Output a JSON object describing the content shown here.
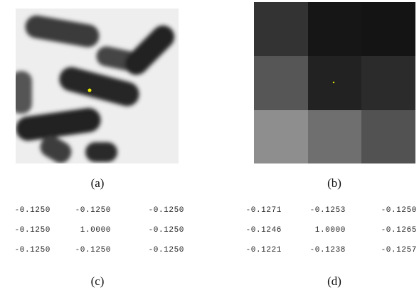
{
  "figure": {
    "panels": [
      {
        "caption": "(a)"
      },
      {
        "caption": "(b)"
      },
      {
        "caption": "(c)",
        "matrix": [
          [
            "-0.1250",
            "-0.1250",
            "-0.1250"
          ],
          [
            "-0.1250",
            "1.0000",
            "-0.1250"
          ],
          [
            "-0.1250",
            "-0.1250",
            "-0.1250"
          ]
        ]
      },
      {
        "caption": "(d)",
        "matrix": [
          [
            "-0.1271",
            "-0.1253",
            "-0.1250"
          ],
          [
            "-0.1246",
            "1.0000",
            "-0.1265"
          ],
          [
            "-0.1221",
            "-0.1238",
            "-0.1257"
          ]
        ]
      }
    ]
  }
}
